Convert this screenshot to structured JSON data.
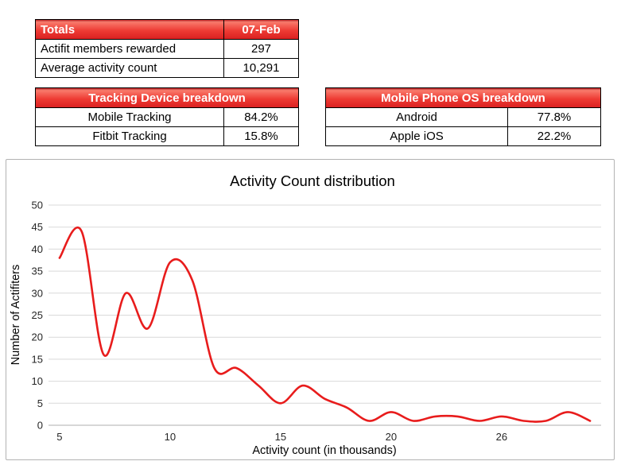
{
  "tables": {
    "totals": {
      "header": [
        "Totals",
        "07-Feb"
      ],
      "rows": [
        {
          "label": "Actifit members rewarded",
          "value": "297"
        },
        {
          "label": "Average activity count",
          "value": "10,291"
        }
      ]
    },
    "tracking_device": {
      "header": "Tracking Device breakdown",
      "rows": [
        {
          "label": "Mobile Tracking",
          "value": "84.2%"
        },
        {
          "label": "Fitbit Tracking",
          "value": "15.8%"
        }
      ]
    },
    "mobile_os": {
      "header": "Mobile Phone OS breakdown",
      "rows": [
        {
          "label": "Android",
          "value": "77.8%"
        },
        {
          "label": "Apple iOS",
          "value": "22.2%"
        }
      ]
    }
  },
  "colors": {
    "header_red": "#ee3a33",
    "line_red": "#e81c1c",
    "gridline": "#d9d9d9",
    "axis_line": "#bfbfbf",
    "tick_text": "#262626",
    "axis_title_text": "#737373",
    "title_text": "#1a1a1a"
  },
  "chart_data": {
    "type": "line",
    "title": "Activity Count distribution",
    "xlabel": "Activity count (in thousands)",
    "ylabel": "Number of Actifiters",
    "x": [
      5,
      6,
      7,
      8,
      9,
      10,
      11,
      12,
      13,
      14,
      15,
      16,
      17,
      18,
      19,
      20,
      21,
      22,
      23,
      24,
      26,
      27,
      28,
      29,
      30
    ],
    "values": [
      38,
      44,
      16,
      30,
      22,
      37,
      33,
      13,
      13,
      9,
      5,
      9,
      6,
      4,
      1,
      3,
      1,
      2,
      2,
      1,
      2,
      1,
      1,
      3,
      1
    ],
    "x_tick_labels": [
      "5",
      "10",
      "15",
      "20",
      "26"
    ],
    "x_tick_indices": [
      0,
      5,
      10,
      15,
      20
    ],
    "ylim": [
      0,
      50
    ],
    "ytick_step": 5,
    "grid": "horizontal",
    "legend": "none",
    "smooth": true
  }
}
